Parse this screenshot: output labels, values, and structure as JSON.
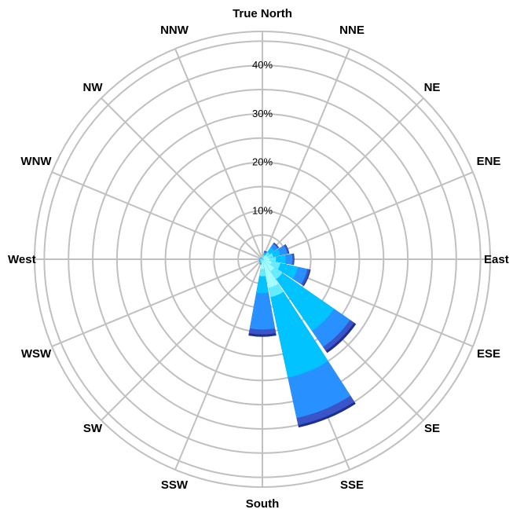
{
  "chart_data": {
    "type": "windrose",
    "directions": [
      "True North",
      "NNE",
      "NE",
      "ENE",
      "East",
      "ESE",
      "SE",
      "SSE",
      "South",
      "SSW",
      "SW",
      "WSW",
      "West",
      "WNW",
      "NW",
      "NNW"
    ],
    "radial_ticks": [
      "10%",
      "20%",
      "30%",
      "40%"
    ],
    "rmax": 47,
    "grid_circle_step": 5,
    "bin_colors": [
      "#a6ffff",
      "#66ecff",
      "#00c3ff",
      "#2891ff",
      "#3a55c8",
      "#1e2f90"
    ],
    "series": [
      {
        "direction": "True North",
        "cumulative": [
          0.2,
          0.3,
          0.3,
          0.3,
          0.3,
          0.3
        ]
      },
      {
        "direction": "NNE",
        "cumulative": [
          0.5,
          0.9,
          1.3,
          1.6,
          1.7,
          1.8
        ]
      },
      {
        "direction": "NE",
        "cumulative": [
          1.0,
          1.8,
          3.0,
          3.9,
          4.1,
          4.2
        ]
      },
      {
        "direction": "ENE",
        "cumulative": [
          1.2,
          2.3,
          3.8,
          5.3,
          5.6,
          5.7
        ]
      },
      {
        "direction": "East",
        "cumulative": [
          1.5,
          2.8,
          4.8,
          6.2,
          6.5,
          6.6
        ]
      },
      {
        "direction": "ESE",
        "cumulative": [
          2.0,
          3.8,
          7.5,
          9.5,
          10.0,
          10.2
        ]
      },
      {
        "direction": "SE",
        "cumulative": [
          3.0,
          5.0,
          18.0,
          22.0,
          23.0,
          23.5
        ]
      },
      {
        "direction": "SSE",
        "cumulative": [
          6.0,
          8.0,
          25.0,
          33.5,
          35.0,
          35.5
        ]
      },
      {
        "direction": "South",
        "cumulative": [
          2.0,
          3.5,
          7.0,
          14.5,
          15.5,
          16.0
        ]
      },
      {
        "direction": "SSW",
        "cumulative": [
          0.5,
          0.8,
          1.0,
          1.1,
          1.1,
          1.1
        ]
      },
      {
        "direction": "SW",
        "cumulative": [
          0.4,
          0.6,
          0.8,
          0.8,
          0.8,
          0.8
        ]
      },
      {
        "direction": "WSW",
        "cumulative": [
          0.3,
          0.5,
          0.6,
          0.6,
          0.6,
          0.6
        ]
      },
      {
        "direction": "West",
        "cumulative": [
          0.3,
          0.5,
          0.6,
          0.6,
          0.6,
          0.6
        ]
      },
      {
        "direction": "WNW",
        "cumulative": [
          0.3,
          0.4,
          0.5,
          0.5,
          0.5,
          0.5
        ]
      },
      {
        "direction": "NW",
        "cumulative": [
          0.2,
          0.3,
          0.4,
          0.4,
          0.4,
          0.4
        ]
      },
      {
        "direction": "NNW",
        "cumulative": [
          0.2,
          0.3,
          0.3,
          0.3,
          0.3,
          0.3
        ]
      }
    ]
  }
}
